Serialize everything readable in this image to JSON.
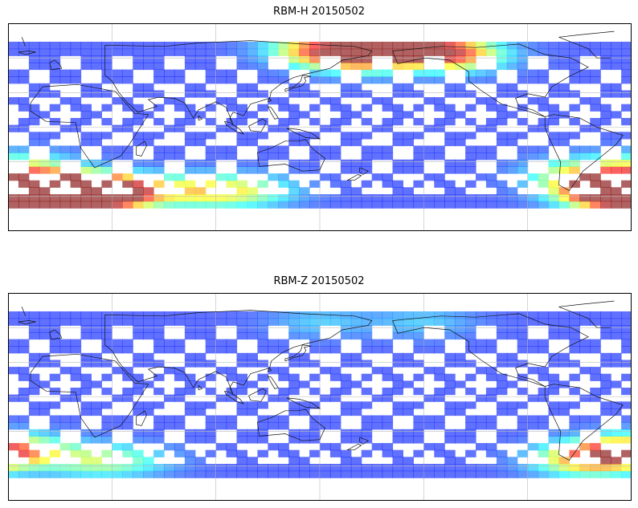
{
  "panels": [
    {
      "title": "RBM-H 20150502",
      "colormap": "jet",
      "hotspots": [
        {
          "lon": 150,
          "lat": 68,
          "level": 0.72
        },
        {
          "lon": 175,
          "lat": 62,
          "level": 0.8
        },
        {
          "lon": -150,
          "lat": 68,
          "level": 0.75
        },
        {
          "lon": -130,
          "lat": 62,
          "level": 0.6
        },
        {
          "lon": -25,
          "lat": -58,
          "level": 1.0
        },
        {
          "lon": -5,
          "lat": -55,
          "level": 0.95
        },
        {
          "lon": -45,
          "lat": -55,
          "level": 0.9
        },
        {
          "lon": 15,
          "lat": -58,
          "level": 0.92
        },
        {
          "lon": 30,
          "lat": -55,
          "level": 0.85
        },
        {
          "lon": 80,
          "lat": -55,
          "level": 0.55
        },
        {
          "lon": 110,
          "lat": -55,
          "level": 0.45
        },
        {
          "lon": -60,
          "lat": -40,
          "level": 0.55
        },
        {
          "lon": -20,
          "lat": -35,
          "level": 0.5
        }
      ],
      "base_level": 0.15
    },
    {
      "title": "RBM-Z 20150502",
      "colormap": "jet",
      "hotspots": [
        {
          "lon": -45,
          "lat": -50,
          "level": 0.62
        },
        {
          "lon": -25,
          "lat": -45,
          "level": 0.58
        },
        {
          "lon": -60,
          "lat": -55,
          "level": 0.5
        },
        {
          "lon": 15,
          "lat": -55,
          "level": 0.42
        },
        {
          "lon": 40,
          "lat": -55,
          "level": 0.35
        },
        {
          "lon": 150,
          "lat": 65,
          "level": 0.3
        },
        {
          "lon": -150,
          "lat": 65,
          "level": 0.3
        }
      ],
      "base_level": 0.15
    }
  ]
}
